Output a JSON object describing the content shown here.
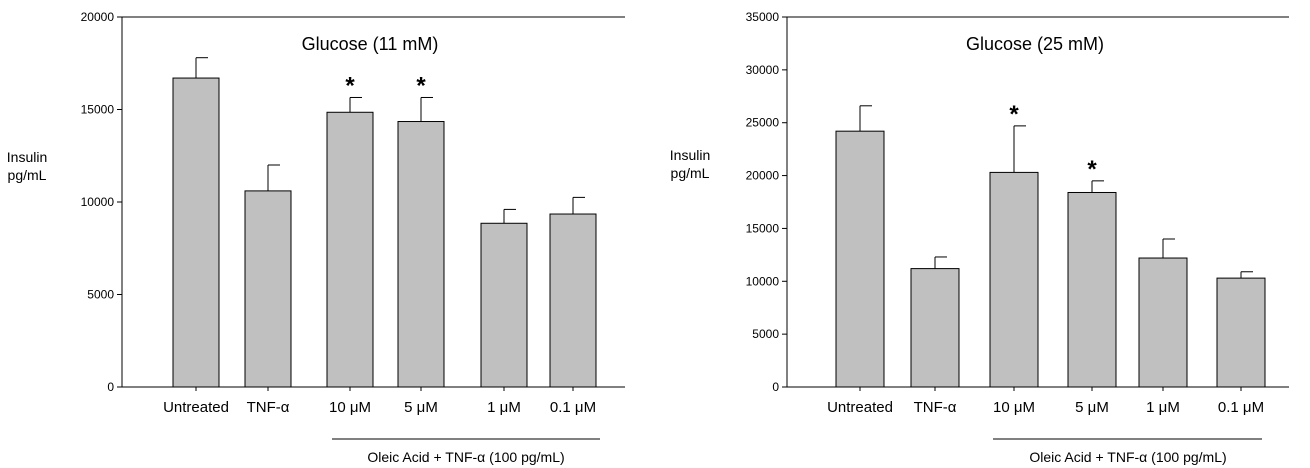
{
  "chart_data": [
    {
      "type": "bar",
      "title": "Glucose (11 mM)",
      "ylabel_line1": "Insulin",
      "ylabel_line2": "pg/mL",
      "categories": [
        "Untreated",
        "TNF-α",
        "10 μM",
        "5 μM",
        "1 μM",
        "0.1 μM"
      ],
      "values": [
        16700,
        10600,
        14850,
        14350,
        8850,
        9350
      ],
      "errors": [
        1100,
        1400,
        800,
        1300,
        750,
        900
      ],
      "significant": [
        false,
        false,
        true,
        true,
        false,
        false
      ],
      "significance_marker": "*",
      "group_label": "Oleic Acid + TNF-α (100 pg/mL)",
      "ylim": [
        0,
        20000
      ],
      "yticks": [
        0,
        5000,
        10000,
        15000,
        20000
      ],
      "grid": false
    },
    {
      "type": "bar",
      "title": "Glucose (25 mM)",
      "ylabel_line1": "Insulin",
      "ylabel_line2": "pg/mL",
      "categories": [
        "Untreated",
        "TNF-α",
        "10 μM",
        "5 μM",
        "1 μM",
        "0.1 μM"
      ],
      "values": [
        24200,
        11200,
        20300,
        18400,
        12200,
        10300
      ],
      "errors": [
        2400,
        1100,
        4400,
        1100,
        1800,
        600
      ],
      "significant": [
        false,
        false,
        true,
        true,
        false,
        false
      ],
      "significance_marker": "*",
      "group_label": "Oleic Acid + TNF-α (100 pg/mL)",
      "ylim": [
        0,
        35000
      ],
      "yticks": [
        0,
        5000,
        10000,
        15000,
        20000,
        25000,
        30000,
        35000
      ],
      "grid": false
    }
  ]
}
